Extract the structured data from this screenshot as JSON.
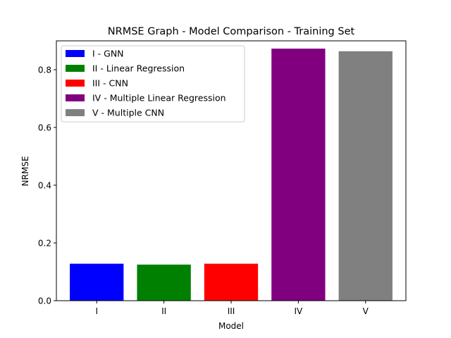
{
  "chart_data": {
    "type": "bar",
    "title": "NRMSE Graph - Model Comparison - Training Set",
    "xlabel": "Model",
    "ylabel": "NRMSE",
    "categories": [
      "I",
      "II",
      "III",
      "IV",
      "V"
    ],
    "values": [
      0.128,
      0.125,
      0.128,
      0.873,
      0.864
    ],
    "colors": [
      "#0000ff",
      "#008000",
      "#ff0000",
      "#800080",
      "#808080"
    ],
    "ylim": [
      0,
      0.9
    ],
    "yticks": [
      0.0,
      0.2,
      0.4,
      0.6,
      0.8
    ],
    "ytick_labels": [
      "0.0",
      "0.2",
      "0.4",
      "0.6",
      "0.8"
    ],
    "grid": false,
    "legend_position": "top-left",
    "legend": [
      {
        "label": "I - GNN",
        "color": "#0000ff"
      },
      {
        "label": "II - Linear Regression",
        "color": "#008000"
      },
      {
        "label": "III - CNN",
        "color": "#ff0000"
      },
      {
        "label": "IV - Multiple Linear Regression",
        "color": "#800080"
      },
      {
        "label": "V - Multiple CNN",
        "color": "#808080"
      }
    ]
  }
}
